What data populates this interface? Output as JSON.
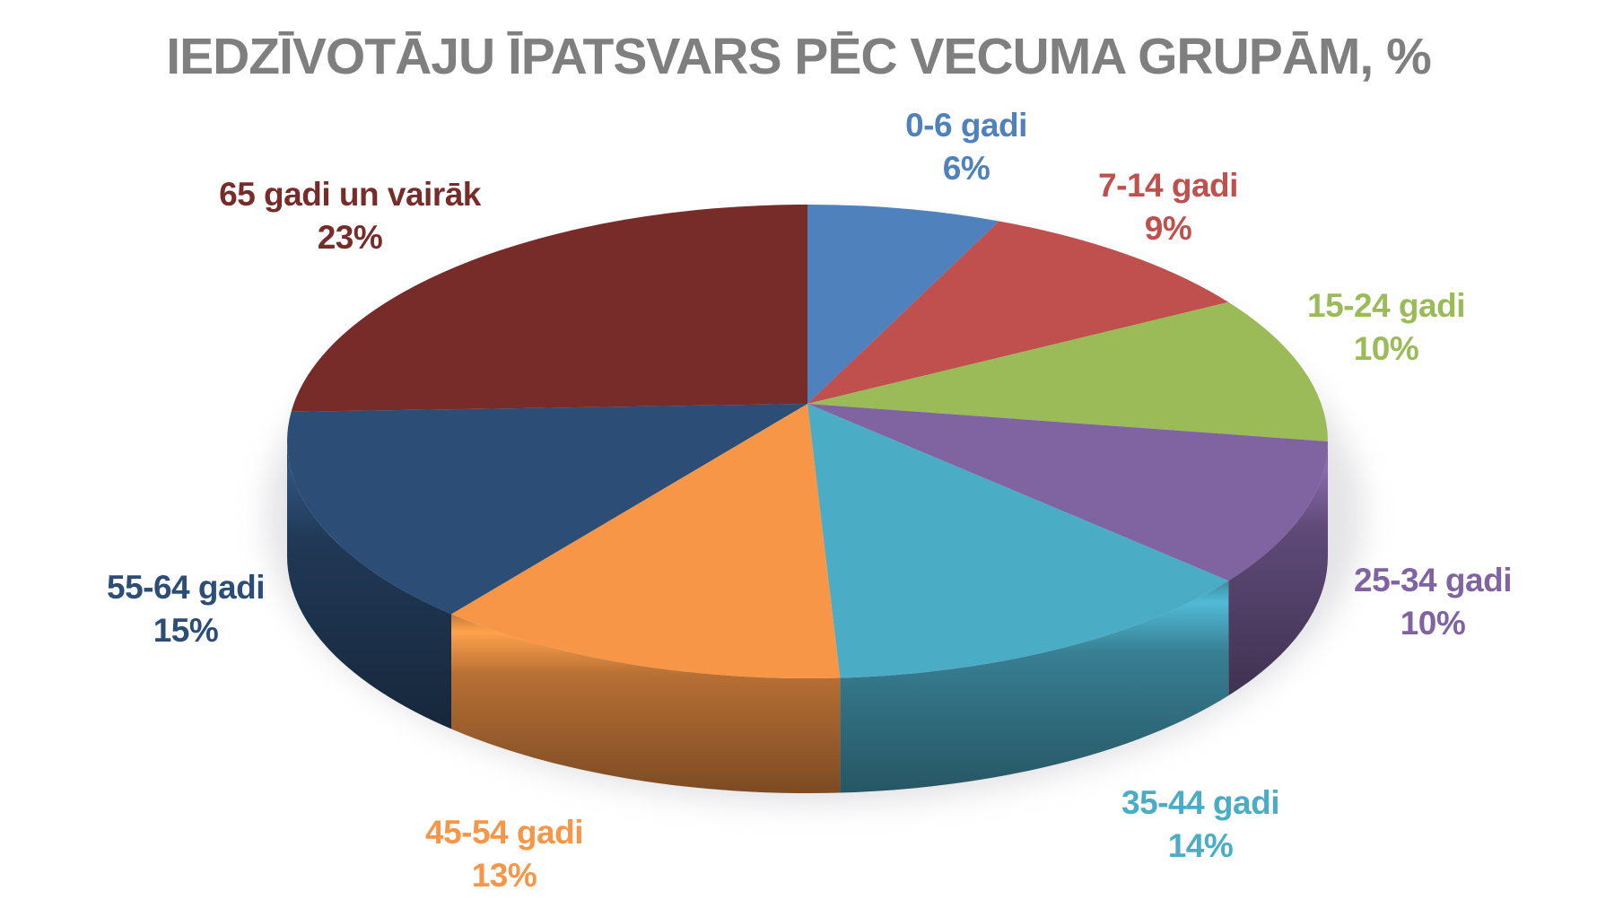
{
  "page": {
    "background": "#FFFFFF"
  },
  "chart_data": {
    "type": "pie",
    "style": "3d",
    "title": "IEDZĪVOTĀJU ĪPATSVARS PĒC VECUMA GRUPĀM, %",
    "title_color": "#7F7F7F",
    "legend": "none",
    "data_labels": "category-and-percent, outside slices",
    "total": 100,
    "categories": [
      "0-6 gadi",
      "7-14 gadi",
      "15-24 gadi",
      "25-34 gadi",
      "35-44 gadi",
      "45-54 gadi",
      "55-64 gadi",
      "65 gadi un vairāk"
    ],
    "values": [
      6,
      9,
      10,
      10,
      14,
      13,
      15,
      23
    ],
    "value_labels": [
      "6%",
      "9%",
      "10%",
      "10%",
      "14%",
      "13%",
      "15%",
      "23%"
    ],
    "colors": [
      "#4F81BD",
      "#C0504D",
      "#9BBB59",
      "#8064A2",
      "#4BACC6",
      "#F79646",
      "#2C4D75",
      "#772C2A"
    ],
    "start_angle_deg": 0,
    "direction": "clockwise"
  }
}
